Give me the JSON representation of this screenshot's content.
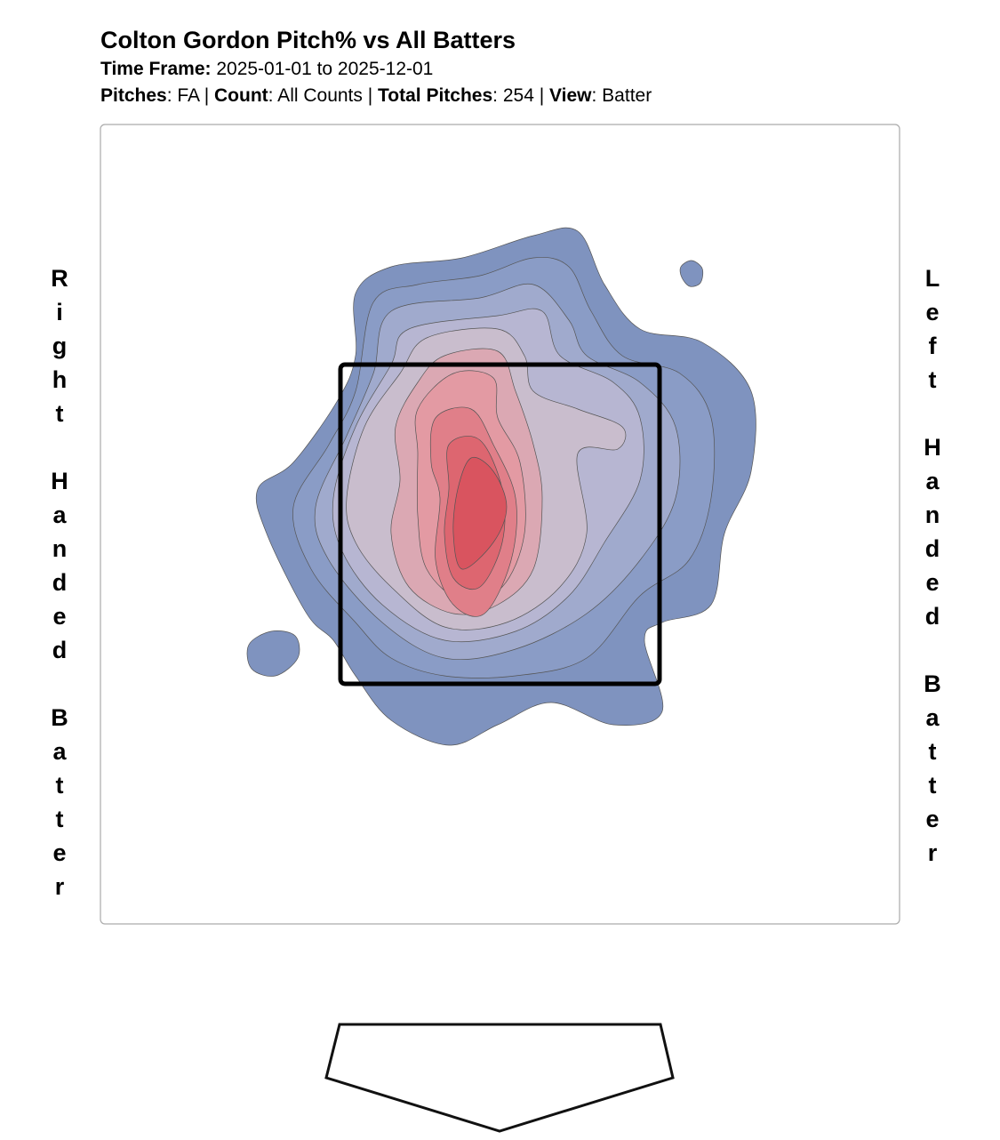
{
  "header": {
    "title": "Colton Gordon Pitch% vs All Batters",
    "time_frame": [
      {
        "text": "Time Frame:",
        "bold": true
      },
      {
        "text": " 2025-01-01 to 2025-12-01",
        "bold": false
      }
    ],
    "filters": [
      {
        "text": "Pitches",
        "bold": true
      },
      {
        "text": ": FA | ",
        "bold": false
      },
      {
        "text": "Count",
        "bold": true
      },
      {
        "text": ": All Counts | ",
        "bold": false
      },
      {
        "text": "Total Pitches",
        "bold": true
      },
      {
        "text": ": 254 | ",
        "bold": false
      },
      {
        "text": "View",
        "bold": true
      },
      {
        "text": ": Batter",
        "bold": false
      }
    ]
  },
  "side_labels": {
    "left": "Right Handed Batter",
    "right": "Left Handed Batter"
  }
}
